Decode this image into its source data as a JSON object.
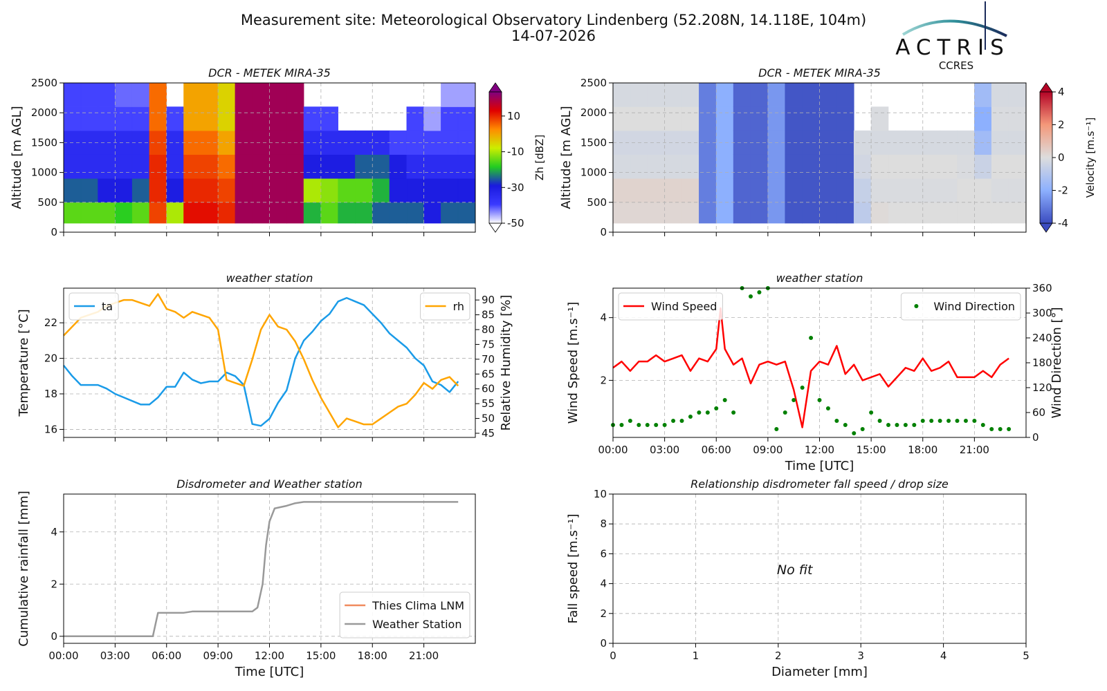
{
  "header": {
    "title": "Measurement site: Meteorological Observatory Lindenberg (52.208N, 14.118E, 104m)",
    "date": "14-07-2026"
  },
  "logo": {
    "title": "ACTRIS",
    "subtitle": "CCRES"
  },
  "chart_data": [
    {
      "type": "heatmap",
      "title": "DCR - METEK MIRA-35",
      "ylabel": "Altitude [m AGL]",
      "xlim": [
        0,
        24
      ],
      "xticks": [
        0,
        3,
        6,
        9,
        12,
        15,
        18,
        21
      ],
      "ylim": [
        0,
        2500
      ],
      "yticks": [
        0,
        500,
        1000,
        1500,
        2000,
        2500
      ],
      "grid": true,
      "x_edges": [
        0,
        1,
        2,
        3,
        4,
        5,
        6,
        7,
        8,
        9,
        10,
        11,
        12,
        13,
        14,
        15,
        16,
        17,
        18,
        19,
        20,
        21,
        22,
        23,
        24
      ],
      "y_edges": [
        150,
        500,
        900,
        1300,
        1700,
        2100,
        2500
      ],
      "z": [
        [
          -15,
          -25,
          -35,
          -35,
          -40,
          -40
        ],
        [
          -15,
          -25,
          -35,
          -35,
          -40,
          -40
        ],
        [
          -15,
          -30,
          -35,
          -35,
          -40,
          -40
        ],
        [
          -18,
          -30,
          -35,
          -35,
          -40,
          -42
        ],
        [
          -15,
          -25,
          -35,
          -35,
          -40,
          -42
        ],
        [
          8,
          10,
          10,
          8,
          5,
          5
        ],
        [
          -10,
          -30,
          -35,
          -35,
          -40,
          null
        ],
        [
          12,
          10,
          8,
          5,
          0,
          0
        ],
        [
          12,
          10,
          8,
          5,
          0,
          0
        ],
        [
          10,
          8,
          5,
          0,
          -5,
          -5
        ],
        [
          20,
          20,
          20,
          20,
          20,
          20
        ],
        [
          20,
          20,
          20,
          20,
          20,
          20
        ],
        [
          20,
          20,
          20,
          20,
          20,
          20
        ],
        [
          20,
          20,
          20,
          20,
          20,
          20
        ],
        [
          -20,
          -10,
          -30,
          -35,
          -40,
          null
        ],
        [
          -15,
          -12,
          -30,
          -35,
          -40,
          null
        ],
        [
          -20,
          -15,
          -30,
          -35,
          null,
          null
        ],
        [
          -20,
          -15,
          -25,
          -35,
          null,
          null
        ],
        [
          -25,
          -20,
          -25,
          -35,
          null,
          null
        ],
        [
          -25,
          -30,
          -30,
          -40,
          null,
          null
        ],
        [
          -25,
          -30,
          -35,
          -40,
          -40,
          null
        ],
        [
          -30,
          -30,
          -35,
          -40,
          -45,
          null
        ],
        [
          -25,
          -30,
          -35,
          -40,
          -40,
          -45
        ],
        [
          -25,
          -30,
          -35,
          -40,
          -40,
          -45
        ]
      ],
      "clim": [
        -50,
        23.5
      ],
      "cticks": [
        -50,
        -30,
        -10,
        10
      ],
      "colorbar_label": "Zh [dBZ]",
      "colormap": [
        "#ffffff",
        "#3a3aff",
        "#1a1adf",
        "#22cc22",
        "#ccee00",
        "#ff8c00",
        "#e00000",
        "#800080"
      ]
    },
    {
      "type": "heatmap",
      "title": "DCR - METEK MIRA-35",
      "ylabel": "Altitude [m AGL]",
      "xlim": [
        0,
        24
      ],
      "xticks": [
        0,
        3,
        6,
        9,
        12,
        15,
        18,
        21
      ],
      "ylim": [
        0,
        2500
      ],
      "yticks": [
        0,
        500,
        1000,
        1500,
        2000,
        2500
      ],
      "grid": true,
      "x_edges": [
        0,
        1,
        2,
        3,
        4,
        5,
        6,
        7,
        8,
        9,
        10,
        11,
        12,
        13,
        14,
        15,
        16,
        17,
        18,
        19,
        20,
        21,
        22,
        23,
        24
      ],
      "y_edges": [
        150,
        500,
        900,
        1300,
        1700,
        2100,
        2500
      ],
      "z": [
        [
          0.2,
          0.3,
          -0.2,
          -0.3,
          0,
          -0.2
        ],
        [
          0.2,
          0.3,
          -0.2,
          -0.3,
          0,
          -0.2
        ],
        [
          0.2,
          0.3,
          -0.2,
          -0.3,
          0,
          -0.2
        ],
        [
          0.2,
          0.3,
          -0.2,
          -0.3,
          0,
          -0.2
        ],
        [
          0.2,
          0.3,
          -0.2,
          -0.3,
          0,
          -0.2
        ],
        [
          -3,
          -3,
          -3,
          -3,
          -3,
          -3
        ],
        [
          -2,
          -2,
          -2,
          -2,
          -2,
          -2
        ],
        [
          -3.5,
          -3.5,
          -3.5,
          -3.5,
          -3.5,
          -3.5
        ],
        [
          -3.5,
          -3.5,
          -3.5,
          -3.5,
          -3.5,
          -3.5
        ],
        [
          -2.5,
          -2.5,
          -2.5,
          -2.5,
          -2.5,
          -2.5
        ],
        [
          -3.8,
          -3.8,
          -3.8,
          -3.8,
          -3.8,
          -3.8
        ],
        [
          -3.8,
          -3.8,
          -3.8,
          -3.8,
          -3.8,
          -3.8
        ],
        [
          -3.8,
          -3.8,
          -3.8,
          -3.8,
          -3.8,
          -3.8
        ],
        [
          -3.8,
          -3.8,
          -3.8,
          -3.8,
          -3.8,
          -3.8
        ],
        [
          -0.8,
          -0.6,
          -0.3,
          -0.2,
          null,
          null
        ],
        [
          0.1,
          -0.1,
          0,
          -0.2,
          -0.1,
          null
        ],
        [
          0,
          -0.1,
          0,
          -0.2,
          null,
          null
        ],
        [
          0,
          -0.1,
          0,
          -0.2,
          null,
          null
        ],
        [
          0,
          -0.1,
          0,
          -0.2,
          null,
          null
        ],
        [
          0,
          -0.1,
          0,
          -0.2,
          null,
          null
        ],
        [
          0,
          0,
          -0.1,
          -0.2,
          null,
          null
        ],
        [
          0,
          0,
          -0.5,
          -1.5,
          -2,
          -1.5
        ],
        [
          0,
          -0.1,
          0,
          -0.2,
          -0.1,
          -0.2
        ],
        [
          0,
          -0.1,
          0,
          -0.2,
          -0.1,
          -0.2
        ]
      ],
      "clim": [
        -4,
        4
      ],
      "cticks": [
        -4,
        -2,
        0,
        2,
        4
      ],
      "colorbar_label": "Velocity [m.s⁻¹]",
      "colormap": [
        "#3b4cc0",
        "#8db0fe",
        "#dddddd",
        "#f4987a",
        "#b40426"
      ]
    },
    {
      "type": "line",
      "title": "weather station",
      "ylabel": "Temperature [°C]",
      "y2label": "Relative Humidity [%]",
      "xlim": [
        0,
        24
      ],
      "xticks": [
        0,
        3,
        6,
        9,
        12,
        15,
        18,
        21
      ],
      "ylim": [
        15.55,
        23.95
      ],
      "yticks": [
        16,
        18,
        20,
        22
      ],
      "y2lim": [
        43.6,
        94
      ],
      "y2ticks": [
        45,
        50,
        55,
        60,
        65,
        70,
        75,
        80,
        85,
        90
      ],
      "grid": true,
      "series": [
        {
          "name": "ta",
          "color": "#1a9be8",
          "legend": "upper left",
          "x": [
            0,
            0.5,
            1,
            1.5,
            2,
            2.5,
            3,
            3.5,
            4,
            4.5,
            5,
            5.5,
            6,
            6.5,
            7,
            7.5,
            8,
            8.5,
            9,
            9.5,
            10,
            10.5,
            11,
            11.5,
            12,
            12.5,
            13,
            13.5,
            14,
            14.5,
            15,
            15.5,
            16,
            16.5,
            17,
            17.5,
            18,
            18.5,
            19,
            19.5,
            20,
            20.5,
            21,
            21.5,
            22,
            22.5,
            23
          ],
          "values": [
            19.6,
            19.0,
            18.5,
            18.5,
            18.5,
            18.3,
            18.0,
            17.8,
            17.6,
            17.4,
            17.4,
            17.8,
            18.4,
            18.4,
            19.2,
            18.8,
            18.6,
            18.7,
            18.7,
            19.2,
            19.0,
            18.5,
            16.3,
            16.2,
            16.6,
            17.5,
            18.2,
            20.0,
            21.0,
            21.5,
            22.1,
            22.5,
            23.2,
            23.4,
            23.2,
            23.0,
            22.5,
            22.0,
            21.4,
            21.0,
            20.6,
            20.0,
            19.6,
            18.7,
            18.5,
            18.1,
            18.7
          ]
        },
        {
          "name": "rh",
          "color": "#ffa500",
          "axis": "y2",
          "legend": "upper right",
          "x": [
            0,
            0.5,
            1,
            1.5,
            2,
            2.5,
            3,
            3.5,
            4,
            4.5,
            5,
            5.5,
            6,
            6.5,
            7,
            7.5,
            8,
            8.5,
            9,
            9.5,
            10,
            10.5,
            11,
            11.5,
            12,
            12.5,
            13,
            13.5,
            14,
            14.5,
            15,
            15.5,
            16,
            16.5,
            17,
            17.5,
            18,
            18.5,
            19,
            19.5,
            20,
            20.5,
            21,
            21.5,
            22,
            22.5,
            23
          ],
          "values": [
            78,
            81,
            84,
            85,
            86,
            88,
            89,
            90,
            90,
            89,
            88,
            92,
            87,
            86,
            84,
            86,
            85,
            84,
            80,
            63,
            62,
            61,
            70,
            80,
            85,
            81,
            80,
            76,
            70,
            63,
            57,
            52,
            47,
            50,
            49,
            48,
            48,
            50,
            52,
            54,
            55,
            58,
            62,
            60,
            63,
            64,
            61
          ]
        }
      ]
    },
    {
      "type": "line",
      "title": "weather station",
      "xlabel": "Time [UTC]",
      "ylabel": "Wind Speed [m.s⁻¹]",
      "y2label": "Wind Direction [°]",
      "xlim": [
        0,
        24
      ],
      "xticks": [
        {
          "value": 0,
          "label": "00:00"
        },
        {
          "value": 3,
          "label": "03:00"
        },
        {
          "value": 6,
          "label": "06:00"
        },
        {
          "value": 9,
          "label": "09:00"
        },
        {
          "value": 12,
          "label": "12:00"
        },
        {
          "value": 15,
          "label": "15:00"
        },
        {
          "value": 18,
          "label": "18:00"
        },
        {
          "value": 21,
          "label": "21:00"
        }
      ],
      "ylim": [
        0.18,
        4.94
      ],
      "yticks": [
        2,
        4
      ],
      "y2lim": [
        0,
        360
      ],
      "y2ticks": [
        0,
        60,
        120,
        180,
        240,
        300,
        360
      ],
      "grid": true,
      "series": [
        {
          "name": "Wind Speed",
          "color": "#ff0000",
          "legend": "upper left",
          "x": [
            0,
            0.5,
            1,
            1.5,
            2,
            2.5,
            3,
            3.5,
            4,
            4.5,
            5,
            5.5,
            6,
            6.25,
            6.5,
            7,
            7.5,
            8,
            8.5,
            9,
            9.5,
            10,
            10.5,
            11,
            11.5,
            12,
            12.5,
            13,
            13.5,
            14,
            14.5,
            15,
            15.5,
            16,
            16.5,
            17,
            17.5,
            18,
            18.5,
            19,
            19.5,
            20,
            20.5,
            21,
            21.5,
            22,
            22.5,
            23
          ],
          "values": [
            2.4,
            2.6,
            2.3,
            2.6,
            2.6,
            2.8,
            2.6,
            2.7,
            2.8,
            2.3,
            2.7,
            2.6,
            3.0,
            4.3,
            3.0,
            2.5,
            2.7,
            1.9,
            2.5,
            2.6,
            2.5,
            2.6,
            1.7,
            0.5,
            2.3,
            2.6,
            2.5,
            3.1,
            2.2,
            2.5,
            2.0,
            2.1,
            2.2,
            1.8,
            2.1,
            2.4,
            2.3,
            2.7,
            2.3,
            2.4,
            2.6,
            2.1,
            2.1,
            2.1,
            2.3,
            2.1,
            2.5,
            2.7
          ]
        },
        {
          "name": "Wind Direction",
          "color": "#008000",
          "axis": "y2",
          "marker": "dot",
          "legend": "upper right",
          "x": [
            0,
            0.5,
            1,
            1.5,
            2,
            2.5,
            3,
            3.5,
            4,
            4.5,
            5,
            5.5,
            6,
            6.5,
            7,
            7.5,
            8,
            8.5,
            9,
            9.5,
            10,
            10.5,
            11,
            11.5,
            12,
            12.5,
            13,
            13.5,
            14,
            14.5,
            15,
            15.5,
            16,
            16.5,
            17,
            17.5,
            18,
            18.5,
            19,
            19.5,
            20,
            20.5,
            21,
            21.5,
            22,
            22.5,
            23
          ],
          "values": [
            30,
            30,
            40,
            30,
            30,
            30,
            30,
            40,
            40,
            50,
            60,
            60,
            70,
            90,
            60,
            360,
            340,
            350,
            360,
            20,
            60,
            90,
            120,
            240,
            90,
            70,
            40,
            30,
            10,
            20,
            60,
            40,
            30,
            30,
            30,
            30,
            40,
            40,
            40,
            40,
            40,
            40,
            40,
            30,
            20,
            20,
            20
          ]
        }
      ]
    },
    {
      "type": "line",
      "title": "Disdrometer and Weather station",
      "xlabel": "Time [UTC]",
      "ylabel": "Cumulative rainfall [mm]",
      "xlim": [
        0,
        24
      ],
      "xticks": [
        {
          "value": 0,
          "label": "00:00"
        },
        {
          "value": 3,
          "label": "03:00"
        },
        {
          "value": 6,
          "label": "06:00"
        },
        {
          "value": 9,
          "label": "09:00"
        },
        {
          "value": 12,
          "label": "12:00"
        },
        {
          "value": 15,
          "label": "15:00"
        },
        {
          "value": 18,
          "label": "18:00"
        },
        {
          "value": 21,
          "label": "21:00"
        }
      ],
      "ylim": [
        -0.27,
        5.45
      ],
      "yticks": [
        0,
        2,
        4
      ],
      "grid": true,
      "series": [
        {
          "name": "Thies Clima LNM",
          "color": "#f08a5d",
          "legend": "lower right",
          "x": [],
          "values": []
        },
        {
          "name": "Weather Station",
          "color": "#999999",
          "legend": "lower right",
          "x": [
            0,
            5.2,
            5.5,
            6,
            7,
            7.5,
            8,
            10,
            11,
            11.3,
            11.6,
            11.8,
            12,
            12.3,
            13,
            13.5,
            14,
            23
          ],
          "values": [
            0,
            0,
            0.9,
            0.9,
            0.9,
            0.95,
            0.95,
            0.95,
            0.95,
            1.1,
            2,
            3.5,
            4.4,
            4.9,
            5,
            5.1,
            5.15,
            5.15
          ]
        }
      ]
    },
    {
      "type": "scatter",
      "title": "Relationship disdrometer fall speed / drop size",
      "xlabel": "Diameter [mm]",
      "ylabel": "Fall speed [m.s⁻¹]",
      "xlim": [
        0,
        5
      ],
      "xticks": [
        0,
        1,
        2,
        3,
        4,
        5
      ],
      "ylim": [
        0,
        10
      ],
      "yticks": [
        0,
        2,
        4,
        6,
        8,
        10
      ],
      "grid": true,
      "series": [],
      "annotation": "No fit"
    }
  ]
}
